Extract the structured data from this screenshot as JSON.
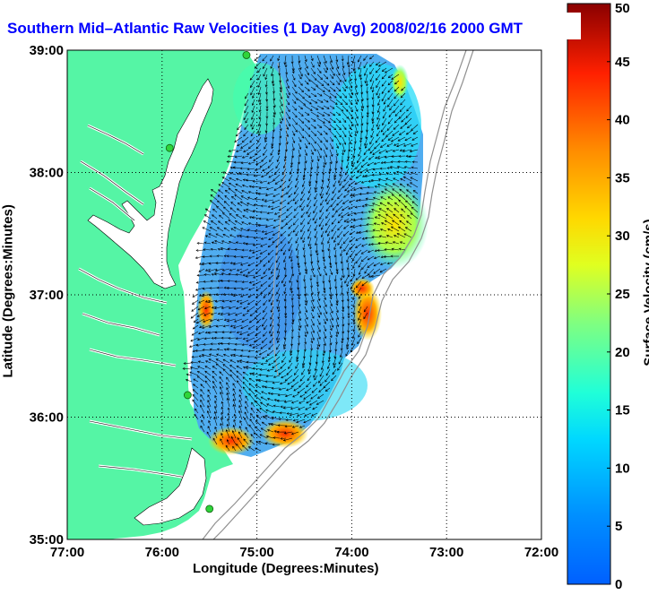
{
  "title": "Southern Mid–Atlantic Raw Velocities (1 Day Avg) 2008/02/16 2000 GMT",
  "xlabel": "Longitude (Degrees:Minutes)",
  "ylabel": "Latitude (Degrees:Minutes)",
  "x_ticks": [
    "77:00",
    "76:00",
    "75:00",
    "74:00",
    "73:00",
    "72:00"
  ],
  "y_ticks": [
    "39:00",
    "38:00",
    "37:00",
    "36:00",
    "35:00"
  ],
  "colorbar": {
    "label": "Surface Velocity (cm/s)",
    "ticks": [
      "0",
      "5",
      "10",
      "15",
      "20",
      "25",
      "30",
      "35",
      "40",
      "45",
      "50"
    ],
    "min": 0,
    "max": 50,
    "colormap": "jet"
  },
  "colors": {
    "land": "#55f5a5",
    "title": "#0000ff",
    "station": "#2fd43a",
    "grid": "#000000"
  },
  "map_data": {
    "lon_range": [
      -77.0,
      -72.0
    ],
    "lat_range": [
      35.0,
      39.0
    ],
    "grid": true,
    "stations": [
      {
        "lon": -75.11,
        "lat": 38.96
      },
      {
        "lon": -75.92,
        "lat": 38.2
      },
      {
        "lon": -75.73,
        "lat": 36.18
      },
      {
        "lon": -75.5,
        "lat": 35.25
      }
    ]
  }
}
